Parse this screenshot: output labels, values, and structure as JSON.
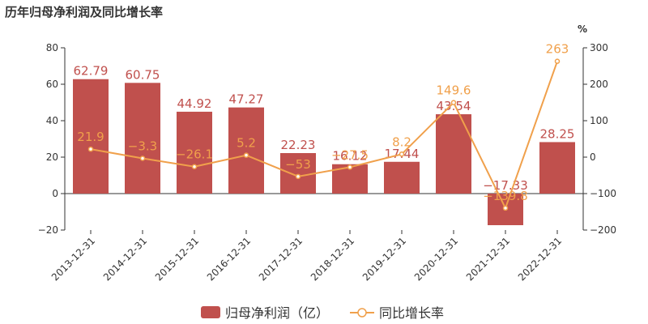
{
  "page": {
    "title": "历年归母净利润及同比增长率"
  },
  "chart_data": {
    "type": "bar",
    "categories": [
      "2013-12-31",
      "2014-12-31",
      "2015-12-31",
      "2016-12-31",
      "2017-12-31",
      "2018-12-31",
      "2019-12-31",
      "2020-12-31",
      "2021-12-31",
      "2022-12-31"
    ],
    "series": [
      {
        "name": "归母净利润（亿）",
        "type": "bar",
        "axis": "left",
        "values": [
          62.79,
          60.75,
          44.92,
          47.27,
          22.23,
          16.12,
          17.44,
          43.54,
          -17.33,
          28.25
        ],
        "labels": [
          "62.79",
          "60.75",
          "44.92",
          "47.27",
          "22.23",
          "16.12",
          "17.44",
          "43.54",
          "−17.33",
          "28.25"
        ],
        "color": "#c0504d"
      },
      {
        "name": "同比增长率",
        "type": "line",
        "axis": "right",
        "values": [
          21.9,
          -3.3,
          -26.1,
          5.2,
          -53,
          -27.5,
          8.2,
          149.6,
          -139.8,
          263
        ],
        "labels": [
          "21.9",
          "−3.3",
          "−26.1",
          "5.2",
          "−53",
          "−27.5",
          "8.2",
          "149.6",
          "−139.8",
          "263"
        ],
        "color": "#f0a04b"
      }
    ],
    "y_left": {
      "ylim": [
        -20,
        80
      ],
      "ticks": [
        -20,
        0,
        20,
        40,
        60,
        80
      ],
      "tick_labels": [
        "−20",
        "0",
        "20",
        "40",
        "60",
        "80"
      ]
    },
    "y_right": {
      "unit": "%",
      "ylim": [
        -200,
        300
      ],
      "ticks": [
        -200,
        -100,
        0,
        100,
        200,
        300
      ],
      "tick_labels": [
        "−200",
        "−100",
        "0",
        "100",
        "200",
        "300"
      ]
    },
    "legend_position": "bottom-center",
    "grid": false
  }
}
